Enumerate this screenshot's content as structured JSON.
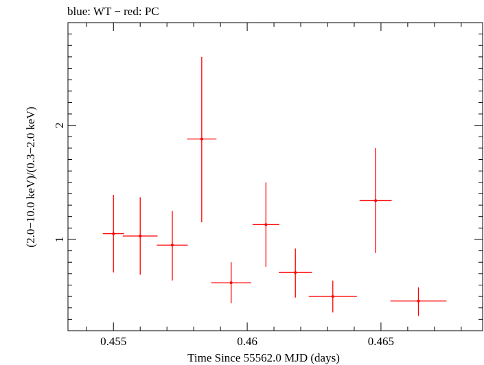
{
  "chart_data": {
    "type": "scatter",
    "title": "blue: WT − red: PC",
    "xlabel": "Time Since 55562.0 MJD (days)",
    "ylabel": "(2.0−10.0 keV)/(0.3−2.0 keV)",
    "xlim": [
      0.4533,
      0.4688
    ],
    "ylim": [
      0.2,
      2.9
    ],
    "x_ticks": [
      {
        "value": 0.455,
        "label": "0.455"
      },
      {
        "value": 0.46,
        "label": "0.46"
      },
      {
        "value": 0.465,
        "label": "0.465"
      }
    ],
    "y_ticks": [
      {
        "value": 1,
        "label": "1"
      },
      {
        "value": 2,
        "label": "2"
      }
    ],
    "grid": false,
    "series": [
      {
        "color": "#ff0000",
        "points": [
          {
            "x": 0.455,
            "x_err": 0.0004,
            "y": 1.05,
            "y_low": 0.71,
            "y_high": 1.39
          },
          {
            "x": 0.456,
            "x_err": 0.00065,
            "y": 1.03,
            "y_low": 0.69,
            "y_high": 1.37
          },
          {
            "x": 0.4572,
            "x_err": 0.00058,
            "y": 0.95,
            "y_low": 0.64,
            "y_high": 1.25
          },
          {
            "x": 0.4583,
            "x_err": 0.00055,
            "y": 1.88,
            "y_low": 1.15,
            "y_high": 2.6
          },
          {
            "x": 0.4594,
            "x_err": 0.00075,
            "y": 0.62,
            "y_low": 0.44,
            "y_high": 0.8
          },
          {
            "x": 0.4607,
            "x_err": 0.0005,
            "y": 1.13,
            "y_low": 0.76,
            "y_high": 1.5
          },
          {
            "x": 0.4618,
            "x_err": 0.00062,
            "y": 0.71,
            "y_low": 0.49,
            "y_high": 0.92
          },
          {
            "x": 0.4632,
            "x_err": 0.0009,
            "y": 0.5,
            "y_low": 0.36,
            "y_high": 0.64
          },
          {
            "x": 0.4648,
            "x_err": 0.0006,
            "y": 1.34,
            "y_low": 0.88,
            "y_high": 1.8
          },
          {
            "x": 0.4664,
            "x_err": 0.00105,
            "y": 0.46,
            "y_low": 0.33,
            "y_high": 0.58
          }
        ]
      }
    ]
  }
}
